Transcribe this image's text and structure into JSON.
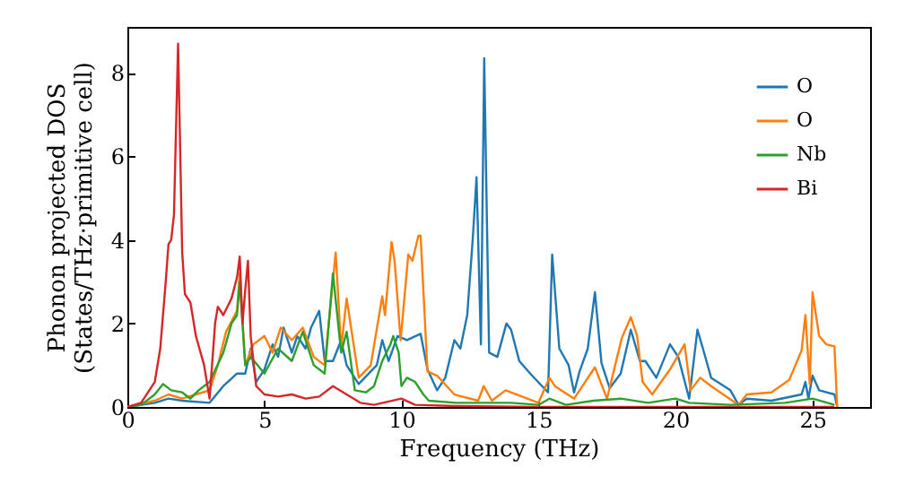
{
  "chart_data": {
    "type": "line",
    "xlabel": "Frequency (THz)",
    "ylabel": "Phonon projected DOS\n(States/THz·primitive cell)",
    "xlim": [
      0,
      27.1
    ],
    "ylim": [
      0,
      9.1
    ],
    "xticks": [
      0,
      5,
      10,
      15,
      20,
      25
    ],
    "yticks": [
      0,
      2,
      4,
      6,
      8
    ],
    "grid": false,
    "legend": "top right",
    "series": [
      {
        "name": "O",
        "color": "#1f77b4",
        "x": [
          0,
          1,
          1.5,
          2,
          3,
          3.5,
          4,
          4.3,
          4.5,
          4.7,
          5,
          5.3,
          5.5,
          5.7,
          6,
          6.2,
          6.5,
          6.7,
          7,
          7.2,
          7.5,
          7.8,
          8,
          8.44,
          9.1,
          9.3,
          9.53,
          9.86,
          10.2,
          10.7,
          10.95,
          11.3,
          11.6,
          11.93,
          12.15,
          12.4,
          12.6,
          12.74,
          12.9,
          13.02,
          13.2,
          13.5,
          13.83,
          14,
          14.3,
          14.7,
          15.2,
          15.35,
          15.5,
          15.76,
          16.1,
          16.3,
          16.5,
          16.8,
          17.06,
          17.3,
          17.6,
          18,
          18.37,
          18.7,
          18.9,
          19.3,
          19.8,
          20.1,
          20.5,
          20.8,
          21,
          21.3,
          22,
          22.3,
          22.6,
          23.5,
          24.6,
          24.74,
          24.85,
          25,
          25.24,
          25.8,
          25.9
        ],
        "values": [
          0,
          0.1,
          0.2,
          0.15,
          0.1,
          0.5,
          0.8,
          0.8,
          1.4,
          0.6,
          0.9,
          1.5,
          1.2,
          1.9,
          1.3,
          1.7,
          1.4,
          1.9,
          2.3,
          1.1,
          1.1,
          1.6,
          1,
          0.55,
          1,
          1.6,
          1.1,
          1.7,
          1.6,
          1.75,
          0.9,
          0.4,
          0.7,
          1.6,
          1.4,
          2.2,
          4,
          5.5,
          1.5,
          8.35,
          1.3,
          1.2,
          2,
          1.85,
          1.1,
          0.8,
          0.45,
          0.35,
          3.65,
          1.4,
          1,
          0.35,
          0.85,
          1.4,
          2.75,
          1.05,
          0.45,
          0.8,
          1.85,
          1.1,
          1.1,
          0.7,
          1.5,
          1.2,
          0.2,
          1.85,
          1.4,
          0.7,
          0.4,
          0.05,
          0.2,
          0.15,
          0.3,
          0.6,
          0.2,
          0.75,
          0.4,
          0.3,
          0
        ]
      },
      {
        "name": "O",
        "color": "#ff7f0e",
        "x": [
          0,
          1,
          1.5,
          2,
          2.5,
          3,
          3.3,
          3.6,
          4,
          4.1,
          4.3,
          4.6,
          5,
          5.3,
          5.6,
          6,
          6.4,
          6.8,
          7.2,
          7.6,
          7.8,
          8,
          8.44,
          8.88,
          9.3,
          9.4,
          9.64,
          9.75,
          9.97,
          10.25,
          10.4,
          10.62,
          10.7,
          10.95,
          11.3,
          11.93,
          12.8,
          13,
          13.3,
          13.8,
          15,
          15.4,
          15.6,
          16.3,
          17.06,
          17.5,
          18.04,
          18.37,
          18.6,
          18.8,
          19.15,
          19.8,
          20.33,
          20.55,
          20.9,
          21.3,
          22.3,
          22.6,
          23.5,
          24.15,
          24.6,
          24.74,
          24.9,
          25,
          25.24,
          25.5,
          25.8,
          25.9
        ],
        "values": [
          0,
          0.15,
          0.3,
          0.2,
          0.3,
          0.4,
          1,
          1.8,
          2.3,
          3.2,
          1,
          1.5,
          1.7,
          1.3,
          1.9,
          1.6,
          1.9,
          1.2,
          1,
          3.7,
          1.4,
          2.6,
          0.7,
          1,
          2.65,
          2.2,
          3.95,
          3.5,
          1.6,
          3.65,
          3.5,
          4.1,
          4.1,
          0.85,
          0.75,
          0.3,
          0.15,
          0.5,
          0.15,
          0.4,
          0.1,
          0.7,
          0.5,
          0.2,
          0.95,
          0.2,
          1.65,
          2.15,
          1.7,
          0.6,
          0.3,
          0.9,
          1.5,
          0.4,
          0.7,
          0.5,
          0.05,
          0.3,
          0.35,
          0.65,
          1.35,
          2.2,
          0.55,
          2.75,
          1.7,
          1.5,
          1.45,
          0
        ]
      },
      {
        "name": "Nb",
        "color": "#2ca02c",
        "x": [
          0,
          0.5,
          1,
          1.3,
          1.6,
          2,
          2.3,
          2.6,
          3,
          3.5,
          3.8,
          4,
          4.1,
          4.3,
          4.5,
          5,
          5.5,
          6,
          6.4,
          6.8,
          7.2,
          7.5,
          7.8,
          8,
          8.3,
          8.7,
          9,
          9.3,
          9.6,
          9.7,
          9.9,
          10,
          10.2,
          10.5,
          10.8,
          11,
          12,
          13,
          14,
          15,
          15.4,
          16,
          17,
          18,
          19,
          20,
          20.5,
          22,
          24,
          25,
          25.8
        ],
        "values": [
          0,
          0.05,
          0.3,
          0.55,
          0.4,
          0.35,
          0.2,
          0.4,
          0.6,
          1.3,
          2,
          2.2,
          3,
          1,
          1.2,
          0.8,
          1.4,
          1.1,
          1.8,
          1,
          0.8,
          3.2,
          1.3,
          1.8,
          0.4,
          0.35,
          0.5,
          1.1,
          1.5,
          1.7,
          1.3,
          0.5,
          0.7,
          0.6,
          0.3,
          0.15,
          0.1,
          0.1,
          0.1,
          0.05,
          0.2,
          0.05,
          0.15,
          0.2,
          0.1,
          0.2,
          0.1,
          0.05,
          0.1,
          0.2,
          0.05
        ]
      },
      {
        "name": "Bi",
        "color": "#d62728",
        "x": [
          0,
          0.5,
          1,
          1.2,
          1.4,
          1.5,
          1.6,
          1.7,
          1.85,
          2,
          2.1,
          2.3,
          2.5,
          2.8,
          3,
          3.2,
          3.3,
          3.5,
          3.8,
          4,
          4.1,
          4.2,
          4.3,
          4.4,
          4.5,
          4.7,
          5,
          5.5,
          6,
          6.5,
          7,
          7.5,
          8,
          8.5,
          9,
          10,
          10.5,
          12,
          15,
          20,
          25,
          25.8
        ],
        "values": [
          0,
          0.1,
          0.6,
          1.4,
          3,
          3.9,
          4,
          4.6,
          8.7,
          3.7,
          2.7,
          2.5,
          1.7,
          1,
          0.2,
          2,
          2.4,
          2.2,
          2.6,
          3.1,
          3.6,
          2,
          2.8,
          3.5,
          1.7,
          0.5,
          0.3,
          0.25,
          0.3,
          0.2,
          0.25,
          0.5,
          0.3,
          0.1,
          0.05,
          0.2,
          0.05,
          0.02,
          0,
          0,
          0,
          0
        ]
      }
    ]
  }
}
